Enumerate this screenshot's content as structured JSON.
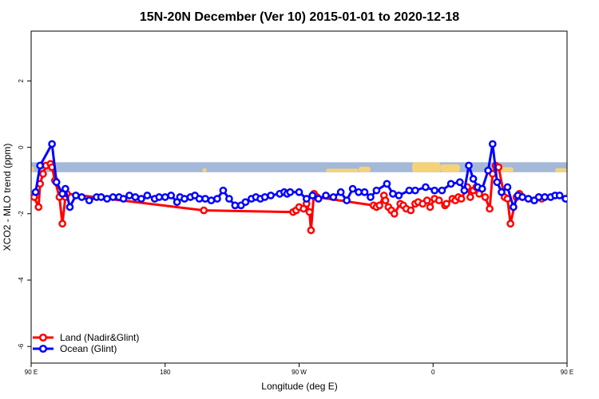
{
  "chart_data": {
    "type": "line",
    "title": "15N-20N December (Ver 10)   2015-01-01 to 2020-12-18",
    "xlabel": "Longitude (deg E)",
    "ylabel": "XCO2 - MLO trend (ppm)",
    "xlim": [
      90,
      450
    ],
    "ylim": [
      -6.5,
      3.5
    ],
    "x_ticks": [
      {
        "value": 90,
        "label": "90 E"
      },
      {
        "value": 180,
        "label": "180"
      },
      {
        "value": 270,
        "label": "90 W"
      },
      {
        "value": 360,
        "label": "0"
      },
      {
        "value": 450,
        "label": "90 E"
      },
      {
        "value": 540,
        "label": "180"
      }
    ],
    "y_ticks": [
      {
        "value": 2,
        "label": "2"
      },
      {
        "value": 0,
        "label": "0"
      },
      {
        "value": -2,
        "label": "-2"
      },
      {
        "value": -4,
        "label": "-4"
      },
      {
        "value": -6,
        "label": "-6"
      }
    ],
    "map_band": {
      "y_min": -0.75,
      "y_max": -0.45,
      "ocean_color": "#a4b8d8",
      "land_color": "#f5d27a"
    },
    "legend_position": "bottom-left",
    "series": [
      {
        "name": "Land (Nadir&Glint)",
        "color": "#ff0000",
        "x": [
          92,
          95,
          96,
          98,
          100,
          103,
          104,
          106,
          109,
          111,
          113,
          114,
          206,
          266,
          268,
          270,
          273,
          275,
          277,
          278,
          280,
          282,
          320,
          322,
          324,
          327,
          328,
          330,
          332,
          334,
          338,
          340,
          342,
          345,
          348,
          350,
          353,
          356,
          358,
          361,
          364,
          368,
          369,
          373,
          375,
          377,
          379,
          383,
          385,
          387,
          389,
          391,
          395,
          398,
          400,
          402,
          404,
          408,
          410,
          412,
          416,
          418,
          420,
          424,
          428,
          431,
          433,
          435
        ],
        "y": [
          -1.5,
          -1.8,
          -1.1,
          -0.8,
          -0.55,
          -0.5,
          -0.6,
          -1.0,
          -1.5,
          -2.3,
          -1.5,
          -1.4,
          -1.9,
          -1.95,
          -1.9,
          -1.8,
          -1.85,
          -1.7,
          -1.95,
          -2.5,
          -1.4,
          -1.5,
          -1.75,
          -1.8,
          -1.75,
          -1.45,
          -1.6,
          -1.8,
          -1.9,
          -2.0,
          -1.7,
          -1.75,
          -1.85,
          -1.9,
          -1.7,
          -1.65,
          -1.7,
          -1.6,
          -1.8,
          -1.55,
          -1.6,
          -1.75,
          -1.7,
          -1.55,
          -1.6,
          -1.5,
          -1.55,
          -1.2,
          -1.5,
          -1.3,
          -1.2,
          -1.4,
          -1.5,
          -1.85,
          -0.8,
          -0.55,
          -0.6,
          -1.5,
          -1.55,
          -2.3,
          -1.5,
          -1.4,
          -1.5,
          -1.55,
          -1.6,
          -1.5,
          -1.55,
          -1.5
        ]
      },
      {
        "name": "Ocean (Glint)",
        "color": "#0000ff",
        "x": [
          93,
          96,
          104,
          107,
          111,
          113,
          116,
          120,
          124,
          129,
          134,
          137,
          141,
          145,
          149,
          152,
          156,
          160,
          164,
          168,
          173,
          176,
          180,
          184,
          188,
          190,
          193,
          197,
          200,
          203,
          207,
          211,
          215,
          219,
          223,
          227,
          231,
          234,
          238,
          241,
          244,
          247,
          251,
          257,
          260,
          262,
          264,
          270,
          275,
          279,
          283,
          288,
          293,
          298,
          302,
          306,
          310,
          314,
          318,
          322,
          329,
          333,
          337,
          344,
          348,
          355,
          361,
          366,
          372,
          378,
          381,
          384,
          387,
          390,
          393,
          397,
          400,
          403,
          406,
          410,
          414,
          417,
          420,
          424,
          428,
          431,
          435,
          439,
          442,
          445,
          449
        ],
        "y": [
          -1.35,
          -0.55,
          0.1,
          -1.05,
          -1.4,
          -1.25,
          -1.8,
          -1.45,
          -1.5,
          -1.6,
          -1.5,
          -1.5,
          -1.55,
          -1.5,
          -1.5,
          -1.55,
          -1.45,
          -1.5,
          -1.55,
          -1.45,
          -1.55,
          -1.5,
          -1.5,
          -1.45,
          -1.65,
          -1.5,
          -1.55,
          -1.5,
          -1.45,
          -1.55,
          -1.55,
          -1.6,
          -1.55,
          -1.3,
          -1.55,
          -1.75,
          -1.75,
          -1.65,
          -1.55,
          -1.5,
          -1.55,
          -1.5,
          -1.45,
          -1.4,
          -1.35,
          -1.4,
          -1.35,
          -1.35,
          -1.55,
          -1.45,
          -1.55,
          -1.45,
          -1.5,
          -1.35,
          -1.6,
          -1.25,
          -1.35,
          -1.35,
          -1.5,
          -1.3,
          -1.1,
          -1.4,
          -1.45,
          -1.3,
          -1.3,
          -1.2,
          -1.3,
          -1.3,
          -1.1,
          -1.05,
          -1.3,
          -0.55,
          -0.95,
          -1.2,
          -1.25,
          -0.7,
          0.1,
          -1.05,
          -1.35,
          -1.2,
          -1.8,
          -1.45,
          -1.5,
          -1.55,
          -1.6,
          -1.5,
          -1.5,
          -1.5,
          -1.45,
          -1.45,
          -1.55
        ]
      }
    ]
  }
}
